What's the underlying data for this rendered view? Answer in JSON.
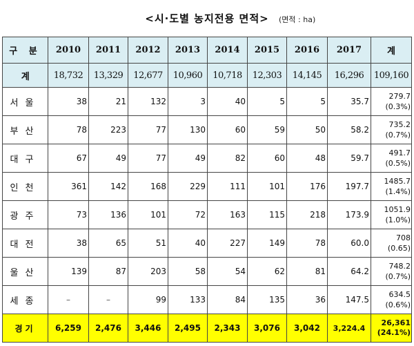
{
  "title": "<시·도별 농지전용 면적>",
  "unit": "(면적 : ha)",
  "headers": [
    "구 분",
    "2010",
    "2011",
    "2012",
    "2013",
    "2014",
    "2015",
    "2016",
    "2017",
    "계"
  ],
  "total": {
    "label": "계",
    "values": [
      "18,732",
      "13,329",
      "12,677",
      "10,960",
      "10,718",
      "12,303",
      "14,145",
      "16,296",
      "109,160"
    ]
  },
  "rows": [
    {
      "label": "서울",
      "values": [
        "38",
        "21",
        "132",
        "3",
        "40",
        "5",
        "5",
        "35.7"
      ],
      "sum": "279.7",
      "pct": "(0.3%)"
    },
    {
      "label": "부산",
      "values": [
        "78",
        "223",
        "77",
        "130",
        "60",
        "59",
        "50",
        "58.2"
      ],
      "sum": "735.2",
      "pct": "(0.7%)"
    },
    {
      "label": "대구",
      "values": [
        "67",
        "49",
        "77",
        "49",
        "82",
        "60",
        "48",
        "59.7"
      ],
      "sum": "491.7",
      "pct": "(0.5%)"
    },
    {
      "label": "인천",
      "values": [
        "361",
        "142",
        "168",
        "229",
        "111",
        "101",
        "176",
        "197.7"
      ],
      "sum": "1485.7",
      "pct": "(1.4%)"
    },
    {
      "label": "광주",
      "values": [
        "73",
        "136",
        "101",
        "72",
        "163",
        "115",
        "218",
        "173.9"
      ],
      "sum": "1051.9",
      "pct": "(1.0%)"
    },
    {
      "label": "대전",
      "values": [
        "38",
        "65",
        "51",
        "40",
        "227",
        "149",
        "78",
        "60.0"
      ],
      "sum": "708",
      "pct": "(0.65)"
    },
    {
      "label": "울산",
      "values": [
        "139",
        "87",
        "203",
        "58",
        "54",
        "62",
        "81",
        "64.2"
      ],
      "sum": "748.2",
      "pct": "(0.7%)"
    },
    {
      "label": "세종",
      "values": [
        "–",
        "–",
        "99",
        "133",
        "84",
        "135",
        "36",
        "147.5"
      ],
      "sum": "634.5",
      "pct": "(0.6%)"
    }
  ],
  "gyeonggi": {
    "label": "경기",
    "values": [
      "6,259",
      "2,476",
      "3,446",
      "2,495",
      "2,343",
      "3,076",
      "3,042",
      "3,224.4"
    ],
    "sum": "26,361",
    "pct": "(24.1%)"
  }
}
